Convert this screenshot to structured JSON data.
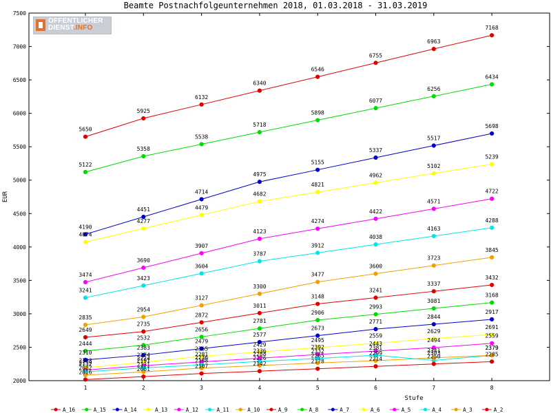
{
  "chart_data": {
    "type": "line",
    "title": "Beamte Postnachfolgeunternehmen 2018, 01.03.2018 - 31.03.2019",
    "xlabel": "Stufe",
    "ylabel": "EUR",
    "x": [
      1,
      2,
      3,
      4,
      5,
      6,
      7,
      8
    ],
    "ylim": [
      2000,
      7500
    ],
    "yticks": [
      2000,
      2500,
      3000,
      3500,
      4000,
      4500,
      5000,
      5500,
      6000,
      6500,
      7000,
      7500
    ],
    "grid": false,
    "legend_position": "bottom",
    "series": [
      {
        "name": "A_16",
        "color": "#e00000",
        "values": [
          5650,
          5925,
          6132,
          6340,
          6546,
          6755,
          6963,
          7168
        ]
      },
      {
        "name": "A_15",
        "color": "#00dd00",
        "values": [
          5122,
          5358,
          5538,
          5718,
          5898,
          6077,
          6256,
          6434
        ]
      },
      {
        "name": "A_14",
        "color": "#0000cc",
        "values": [
          4190,
          4451,
          4714,
          4975,
          5155,
          5337,
          5517,
          5698
        ]
      },
      {
        "name": "A_13",
        "color": "#ffff00",
        "values": [
          4074,
          4277,
          4479,
          4682,
          4821,
          4962,
          5102,
          5239
        ]
      },
      {
        "name": "A_12",
        "color": "#ff00ff",
        "values": [
          3474,
          3690,
          3907,
          4123,
          4274,
          4422,
          4571,
          4722
        ]
      },
      {
        "name": "A_11",
        "color": "#00e6e6",
        "values": [
          3241,
          3423,
          3604,
          3787,
          3912,
          4038,
          4163,
          4288
        ]
      },
      {
        "name": "A_10",
        "color": "#f0a000",
        "values": [
          2835,
          2954,
          3127,
          3300,
          3477,
          3600,
          3723,
          3845
        ]
      },
      {
        "name": "A_9",
        "color": "#e00000",
        "values": [
          2649,
          2735,
          2872,
          3011,
          3148,
          3241,
          3337,
          3432
        ]
      },
      {
        "name": "A_8",
        "color": "#00dd00",
        "values": [
          2444,
          2532,
          2656,
          2781,
          2906,
          2993,
          3081,
          3168
        ]
      },
      {
        "name": "A_7",
        "color": "#0000cc",
        "values": [
          2310,
          2383,
          2479,
          2577,
          2673,
          2771,
          2844,
          2917
        ]
      },
      {
        "name": "A_6",
        "color": "#ffff00",
        "values": [
          2193,
          2274,
          2365,
          2429,
          2495,
          2559,
          2629,
          2691
        ]
      },
      {
        "name": "A_5",
        "color": "#ff00ff",
        "values": [
          2159,
          2224,
          2281,
          2336,
          2392,
          2443,
          2494,
          2559
        ]
      },
      {
        "name": "A_4",
        "color": "#00e6e6",
        "values": [
          2132,
          2191,
          2236,
          2288,
          2332,
          2381,
          2303,
          2379
        ]
      },
      {
        "name": "A_3",
        "color": "#f0a000",
        "values": [
          2082,
          2131,
          2188,
          2226,
          2265,
          2299,
          2341,
          2379
        ]
      },
      {
        "name": "A_2",
        "color": "#e00000",
        "values": [
          2016,
          2061,
          2107,
          2142,
          2178,
          2214,
          2250,
          2285
        ]
      }
    ]
  },
  "logo": {
    "line1": "OFFENTLICHER",
    "line2a": "DIENST",
    "line2b": ".INFO"
  }
}
